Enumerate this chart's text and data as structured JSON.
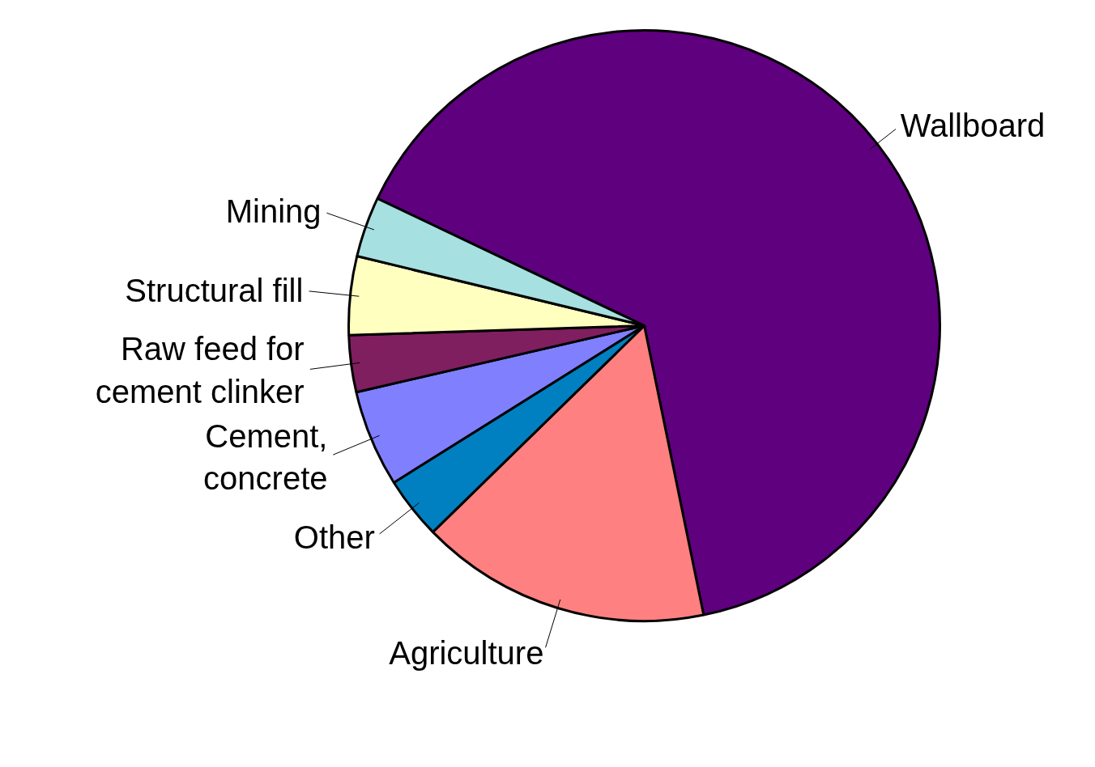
{
  "chart_data": {
    "type": "pie",
    "categories": [
      "Wallboard",
      "Agriculture",
      "Other",
      "Cement, concrete",
      "Raw feed for cement clinker",
      "Structural fill",
      "Mining"
    ],
    "values": [
      64.7,
      15.9,
      3.4,
      5.3,
      3.1,
      4.3,
      3.3
    ],
    "colors": [
      "#5f007f",
      "#ff8080",
      "#0080c0",
      "#8080ff",
      "#7f1f5f",
      "#ffffc0",
      "#a6e0e0"
    ]
  }
}
